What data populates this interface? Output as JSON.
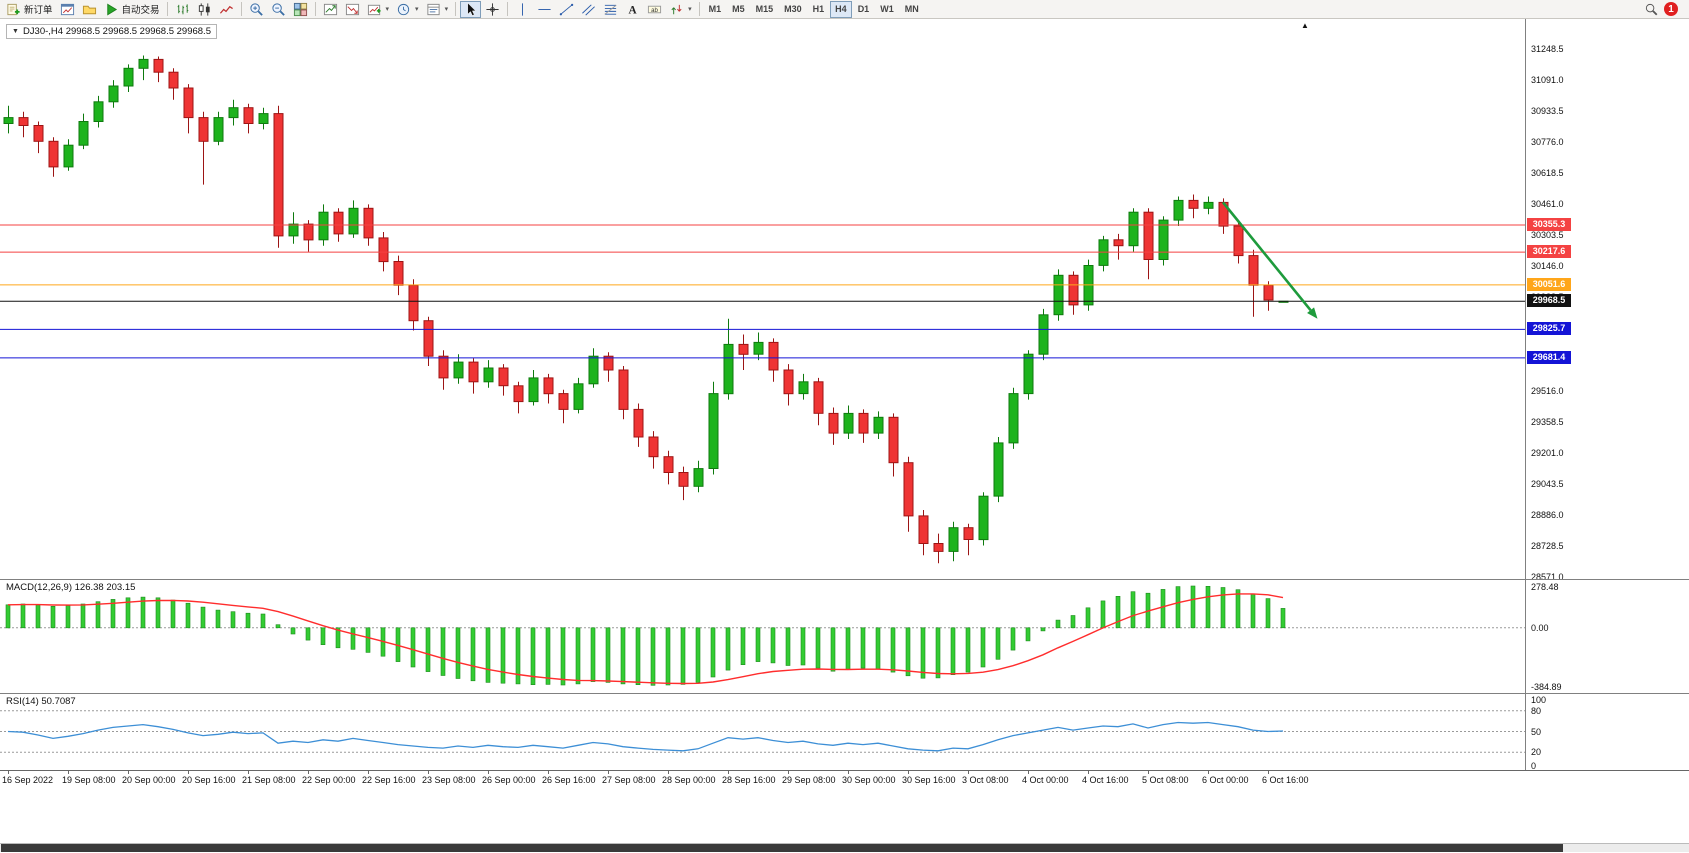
{
  "toolbar": {
    "buttons": [
      {
        "name": "new-order-button",
        "icon": "new-order",
        "label": "新订单"
      },
      {
        "name": "chart-windows-button",
        "icon": "chart-window"
      },
      {
        "name": "profiles-button",
        "icon": "profiles"
      },
      {
        "name": "autotrading-button",
        "icon": "play",
        "label": "自动交易"
      },
      {
        "type": "sep"
      },
      {
        "name": "bar-chart-button",
        "icon": "ohlc-bars"
      },
      {
        "name": "candlestick-chart-button",
        "icon": "candles"
      },
      {
        "name": "line-chart-button",
        "icon": "line-chart"
      },
      {
        "type": "sep"
      },
      {
        "name": "zoom-in-button",
        "icon": "zoom-in"
      },
      {
        "name": "zoom-out-button",
        "icon": "zoom-out"
      },
      {
        "name": "tile-windows-button",
        "icon": "tile-windows"
      },
      {
        "type": "sep"
      },
      {
        "name": "indicators-button",
        "icon": "indicator-up"
      },
      {
        "name": "indicator-list-button",
        "icon": "indicator-down"
      },
      {
        "name": "add-indicator-button",
        "icon": "indicator-add",
        "dropdown": true
      },
      {
        "name": "periods-button",
        "icon": "clock",
        "dropdown": true
      },
      {
        "name": "templates-button",
        "icon": "template",
        "dropdown": true
      },
      {
        "type": "sep"
      },
      {
        "name": "cursor-button",
        "icon": "cursor",
        "active": true
      },
      {
        "name": "crosshair-button",
        "icon": "crosshair"
      },
      {
        "type": "sep"
      },
      {
        "name": "vertical-line-button",
        "icon": "vline"
      },
      {
        "name": "horizontal-line-button",
        "icon": "hline"
      },
      {
        "name": "trendline-button",
        "icon": "trendline"
      },
      {
        "name": "channel-button",
        "icon": "channel"
      },
      {
        "name": "fibonacci-button",
        "icon": "fibonacci"
      },
      {
        "name": "text-button",
        "icon": "text-a"
      },
      {
        "name": "label-button",
        "icon": "label-t"
      },
      {
        "name": "arrows-button",
        "icon": "arrow-shapes",
        "dropdown": true
      },
      {
        "type": "sep"
      }
    ],
    "timeframes": [
      {
        "name": "timeframe-m1-button",
        "label": "M1"
      },
      {
        "name": "timeframe-m5-button",
        "label": "M5"
      },
      {
        "name": "timeframe-m15-button",
        "label": "M15"
      },
      {
        "name": "timeframe-m30-button",
        "label": "M30"
      },
      {
        "name": "timeframe-h1-button",
        "label": "H1"
      },
      {
        "name": "timeframe-h4-button",
        "label": "H4"
      },
      {
        "name": "timeframe-d1-button",
        "label": "D1"
      },
      {
        "name": "timeframe-w1-button",
        "label": "W1"
      },
      {
        "name": "timeframe-mn-button",
        "label": "MN"
      }
    ],
    "active_timeframe": "H4",
    "notification_count": "1"
  },
  "chart": {
    "quote_line": "DJ30-,H4 29968.5 29968.5 29968.5 29968.5",
    "symbol": "DJ30-",
    "period": "H4",
    "open": "29968.5",
    "high": "29968.5",
    "low": "29968.5",
    "close": "29968.5"
  },
  "chart_data": [
    {
      "type": "candlestick",
      "symbol": "DJ30-",
      "timeframe": "H4",
      "ylim": [
        28560,
        31400
      ],
      "bull_color": "#1db31d",
      "bull_stroke": "#0e7a0e",
      "bear_color": "#ef3434",
      "bear_stroke": "#9c1414",
      "price_axis_labels": [
        "31248.5",
        "31091.0",
        "30933.5",
        "30776.0",
        "30618.5",
        "30461.0",
        "30303.5",
        "30146.0",
        "29988.5",
        "29831.0",
        "29673.5",
        "29516.0",
        "29358.5",
        "29201.0",
        "29043.5",
        "28886.0",
        "28728.5",
        "28571.0"
      ],
      "hlines": [
        {
          "price": 30355.3,
          "label": "30355.3",
          "color": "#f44242"
        },
        {
          "price": 30217.6,
          "label": "30217.6",
          "color": "#f44242"
        },
        {
          "price": 30051.6,
          "label": "30051.6",
          "color": "#ffa61a"
        },
        {
          "price": 29968.5,
          "label": "29968.5",
          "color": "#111111",
          "current": true
        },
        {
          "price": 29825.7,
          "label": "29825.7",
          "color": "#1414d6"
        },
        {
          "price": 29681.4,
          "label": "29681.4",
          "color": "#1414d6"
        }
      ],
      "trend_arrow": {
        "from_bar": 81,
        "from_price": 30470,
        "to_bar": 87.3,
        "to_price": 29880,
        "color": "#1e9b3c"
      },
      "bars_per_label": 4,
      "x_labels": [
        "16 Sep 2022",
        "19 Sep 08:00",
        "20 Sep 00:00",
        "20 Sep 16:00",
        "21 Sep 08:00",
        "22 Sep 00:00",
        "22 Sep 16:00",
        "23 Sep 08:00",
        "26 Sep 00:00",
        "26 Sep 16:00",
        "27 Sep 08:00",
        "28 Sep 00:00",
        "28 Sep 16:00",
        "29 Sep 08:00",
        "30 Sep 00:00",
        "30 Sep 16:00",
        "3 Oct 08:00",
        "4 Oct 00:00",
        "4 Oct 16:00",
        "5 Oct 08:00",
        "6 Oct 00:00",
        "6 Oct 16:00"
      ],
      "candles": [
        [
          30870,
          30960,
          30820,
          30900
        ],
        [
          30900,
          30930,
          30800,
          30860
        ],
        [
          30860,
          30880,
          30720,
          30780
        ],
        [
          30780,
          30800,
          30600,
          30650
        ],
        [
          30650,
          30790,
          30630,
          30760
        ],
        [
          30760,
          30920,
          30740,
          30880
        ],
        [
          30880,
          31010,
          30850,
          30980
        ],
        [
          30980,
          31090,
          30950,
          31060
        ],
        [
          31060,
          31170,
          31030,
          31150
        ],
        [
          31150,
          31215,
          31090,
          31195
        ],
        [
          31195,
          31210,
          31080,
          31130
        ],
        [
          31130,
          31150,
          30990,
          31050
        ],
        [
          31050,
          31070,
          30820,
          30900
        ],
        [
          30900,
          30930,
          30560,
          30780
        ],
        [
          30780,
          30930,
          30760,
          30900
        ],
        [
          30900,
          30990,
          30860,
          30950
        ],
        [
          30950,
          30970,
          30820,
          30870
        ],
        [
          30870,
          30950,
          30840,
          30920
        ],
        [
          30920,
          30960,
          30240,
          30300
        ],
        [
          30300,
          30420,
          30260,
          30360
        ],
        [
          30360,
          30380,
          30220,
          30280
        ],
        [
          30280,
          30460,
          30250,
          30420
        ],
        [
          30420,
          30440,
          30270,
          30310
        ],
        [
          30310,
          30480,
          30290,
          30440
        ],
        [
          30440,
          30460,
          30250,
          30290
        ],
        [
          30290,
          30320,
          30120,
          30170
        ],
        [
          30170,
          30200,
          30000,
          30050
        ],
        [
          30050,
          30080,
          29820,
          29870
        ],
        [
          29870,
          29890,
          29640,
          29690
        ],
        [
          29690,
          29720,
          29520,
          29580
        ],
        [
          29580,
          29700,
          29550,
          29660
        ],
        [
          29660,
          29680,
          29500,
          29560
        ],
        [
          29560,
          29670,
          29530,
          29630
        ],
        [
          29630,
          29650,
          29490,
          29540
        ],
        [
          29540,
          29560,
          29400,
          29460
        ],
        [
          29460,
          29620,
          29440,
          29580
        ],
        [
          29580,
          29600,
          29450,
          29500
        ],
        [
          29500,
          29520,
          29350,
          29420
        ],
        [
          29420,
          29580,
          29400,
          29550
        ],
        [
          29550,
          29730,
          29530,
          29690
        ],
        [
          29690,
          29710,
          29560,
          29620
        ],
        [
          29620,
          29640,
          29370,
          29420
        ],
        [
          29420,
          29450,
          29230,
          29280
        ],
        [
          29280,
          29310,
          29120,
          29180
        ],
        [
          29180,
          29210,
          29040,
          29100
        ],
        [
          29100,
          29130,
          28960,
          29030
        ],
        [
          29030,
          29160,
          29000,
          29120
        ],
        [
          29120,
          29560,
          29090,
          29500
        ],
        [
          29500,
          29880,
          29470,
          29750
        ],
        [
          29750,
          29800,
          29620,
          29700
        ],
        [
          29700,
          29810,
          29670,
          29760
        ],
        [
          29760,
          29780,
          29560,
          29620
        ],
        [
          29620,
          29650,
          29440,
          29500
        ],
        [
          29500,
          29600,
          29470,
          29560
        ],
        [
          29560,
          29580,
          29340,
          29400
        ],
        [
          29400,
          29430,
          29240,
          29300
        ],
        [
          29300,
          29440,
          29270,
          29400
        ],
        [
          29400,
          29420,
          29250,
          29300
        ],
        [
          29300,
          29410,
          29270,
          29380
        ],
        [
          29380,
          29400,
          29080,
          29150
        ],
        [
          29150,
          29180,
          28800,
          28880
        ],
        [
          28880,
          28910,
          28680,
          28740
        ],
        [
          28740,
          28790,
          28640,
          28700
        ],
        [
          28700,
          28850,
          28650,
          28820
        ],
        [
          28820,
          28840,
          28680,
          28760
        ],
        [
          28760,
          29000,
          28730,
          28980
        ],
        [
          28980,
          29280,
          28950,
          29250
        ],
        [
          29250,
          29530,
          29220,
          29500
        ],
        [
          29500,
          29720,
          29470,
          29700
        ],
        [
          29700,
          29930,
          29670,
          29900
        ],
        [
          29900,
          30130,
          29870,
          30100
        ],
        [
          30100,
          30120,
          29900,
          29950
        ],
        [
          29950,
          30180,
          29920,
          30150
        ],
        [
          30150,
          30300,
          30120,
          30280
        ],
        [
          30280,
          30310,
          30180,
          30250
        ],
        [
          30250,
          30440,
          30220,
          30420
        ],
        [
          30420,
          30440,
          30080,
          30180
        ],
        [
          30180,
          30400,
          30150,
          30380
        ],
        [
          30380,
          30500,
          30350,
          30480
        ],
        [
          30480,
          30510,
          30390,
          30440
        ],
        [
          30440,
          30500,
          30410,
          30470
        ],
        [
          30470,
          30490,
          30310,
          30350
        ],
        [
          30350,
          30380,
          30160,
          30200
        ],
        [
          30200,
          30230,
          29890,
          30050
        ],
        [
          30050,
          30070,
          29920,
          29975
        ],
        [
          29968.5,
          29968.5,
          29968.5,
          29968.5
        ]
      ]
    },
    {
      "type": "bar",
      "label": "MACD(12,26,9) 126.38 203.15",
      "main_value": "126.38",
      "signal_value": "203.15",
      "ylim": [
        -384.89,
        278.48
      ],
      "axis_labels": [
        "278.48",
        "0.00",
        "-384.89"
      ],
      "bar_color": "#33cc33",
      "bar_stroke": "#1b8a1b",
      "signal_color": "#ff2d2d",
      "signal_period": 9,
      "values": [
        150,
        155,
        150,
        140,
        145,
        155,
        170,
        185,
        195,
        200,
        195,
        180,
        160,
        135,
        115,
        105,
        95,
        90,
        20,
        -40,
        -80,
        -110,
        -130,
        -140,
        -160,
        -185,
        -220,
        -255,
        -285,
        -310,
        -330,
        -345,
        -355,
        -360,
        -365,
        -370,
        -368,
        -372,
        -365,
        -350,
        -355,
        -365,
        -370,
        -374,
        -372,
        -368,
        -355,
        -320,
        -275,
        -240,
        -220,
        -228,
        -245,
        -242,
        -262,
        -282,
        -272,
        -262,
        -268,
        -288,
        -312,
        -328,
        -326,
        -305,
        -288,
        -255,
        -205,
        -145,
        -85,
        -20,
        50,
        80,
        130,
        175,
        205,
        235,
        225,
        250,
        268,
        272,
        270,
        262,
        248,
        220,
        190,
        126.38
      ]
    },
    {
      "type": "line",
      "label": "RSI(14) 50.7087",
      "value": "50.7087",
      "ylim": [
        0,
        100
      ],
      "levels": [
        80,
        50,
        20
      ],
      "axis_labels": [
        "100",
        "80",
        "50",
        "20",
        "0"
      ],
      "line_color": "#3d8fd6",
      "values": [
        50,
        49,
        45,
        40,
        43,
        47,
        52,
        56,
        58,
        60,
        57,
        53,
        48,
        44,
        46,
        49,
        47,
        48,
        33,
        36,
        34,
        38,
        36,
        40,
        37,
        34,
        31,
        29,
        27,
        26,
        29,
        27,
        30,
        28,
        27,
        30,
        28,
        26,
        30,
        34,
        32,
        28,
        26,
        24,
        23,
        22,
        25,
        33,
        41,
        39,
        41,
        37,
        34,
        36,
        32,
        30,
        33,
        31,
        33,
        29,
        25,
        23,
        22,
        26,
        25,
        31,
        38,
        44,
        48,
        52,
        56,
        52,
        55,
        58,
        57,
        61,
        55,
        60,
        63,
        62,
        63,
        60,
        57,
        52,
        50,
        50.71
      ]
    }
  ]
}
